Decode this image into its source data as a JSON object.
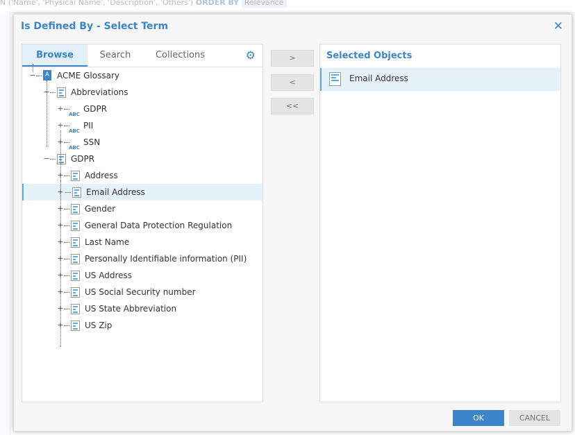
{
  "background": {
    "query_prefix": "N ('Name', 'Physical Name', 'Description', 'Others')",
    "order_by": "ORDER BY",
    "relevance": "Relevance"
  },
  "dialog": {
    "title": "Is Defined By - Select Term",
    "close_icon": "close-icon"
  },
  "browser": {
    "tabs": [
      {
        "label": "Browse",
        "active": true
      },
      {
        "label": "Search"
      },
      {
        "label": "Collections"
      }
    ],
    "settings_icon": "gear-icon",
    "tree": [
      {
        "label": "ACME Glossary",
        "level": 0,
        "icon": "glossary",
        "glyph": "A",
        "expanded": true
      },
      {
        "label": "Abbreviations",
        "level": 1,
        "icon": "doc",
        "expanded": true
      },
      {
        "label": "GDPR",
        "level": 2,
        "icon": "abc",
        "glyph": "ABC"
      },
      {
        "label": "PII",
        "level": 2,
        "icon": "abc",
        "glyph": "ABC"
      },
      {
        "label": "SSN",
        "level": 2,
        "icon": "abc",
        "glyph": "ABC"
      },
      {
        "label": "GDPR",
        "level": 1,
        "icon": "doc",
        "expanded": true
      },
      {
        "label": "Address",
        "level": 2,
        "icon": "doc"
      },
      {
        "label": "Email Address",
        "level": 2,
        "icon": "doc",
        "selected": true
      },
      {
        "label": "Gender",
        "level": 2,
        "icon": "doc"
      },
      {
        "label": "General Data Protection Regulation",
        "level": 2,
        "icon": "doc"
      },
      {
        "label": "Last Name",
        "level": 2,
        "icon": "doc"
      },
      {
        "label": "Personally Identifiable information (PII)",
        "level": 2,
        "icon": "doc"
      },
      {
        "label": "US Address",
        "level": 2,
        "icon": "doc"
      },
      {
        "label": "US Social Security number",
        "level": 2,
        "icon": "doc"
      },
      {
        "label": "US State Abbreviation",
        "level": 2,
        "icon": "doc"
      },
      {
        "label": "US Zip",
        "level": 2,
        "icon": "doc"
      }
    ]
  },
  "transfer": {
    "add": ">",
    "remove": "<",
    "remove_all": "<<"
  },
  "selected": {
    "header": "Selected Objects",
    "items": [
      {
        "label": "Email Address",
        "icon": "doc"
      }
    ]
  },
  "footer": {
    "ok": "OK",
    "cancel": "CANCEL"
  },
  "colors": {
    "accent": "#3a86c8",
    "ok_button": "#3a86c8",
    "selection": "#e6f2fa"
  }
}
